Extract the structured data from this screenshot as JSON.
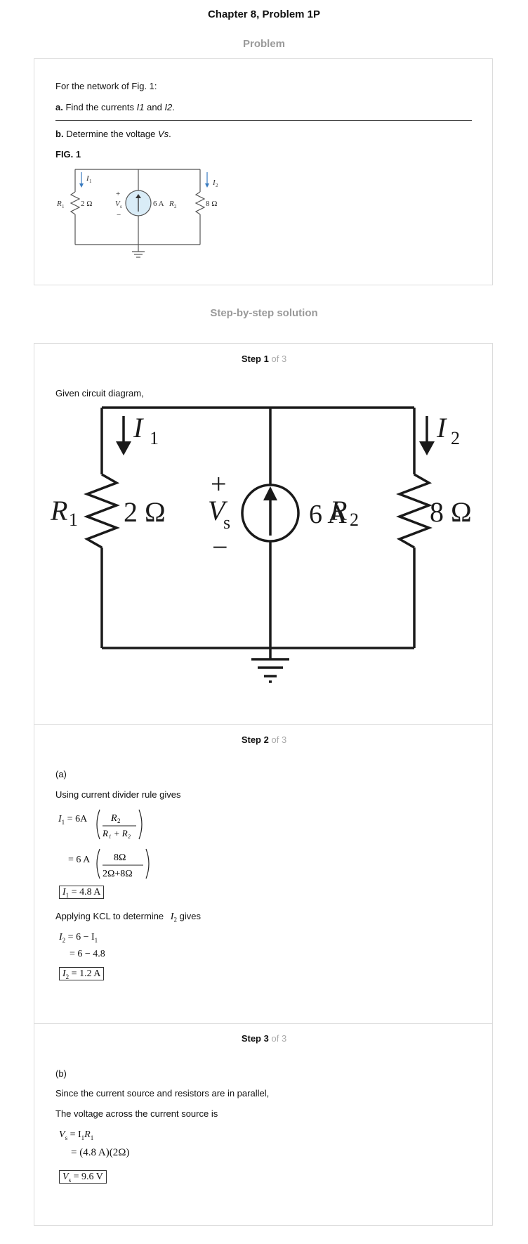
{
  "header": {
    "title": "Chapter 8, Problem 1P"
  },
  "problem": {
    "heading": "Problem",
    "intro": "For the network of Fig. 1:",
    "part_a_label": "a.",
    "part_a_pre": "Find the currents",
    "part_a_i1": "I1",
    "part_a_and": "and",
    "part_a_i2": "I2",
    "part_a_end": ".",
    "part_b_label": "b.",
    "part_b_pre": "Determine the voltage",
    "part_b_vs": "Vs",
    "part_b_end": ".",
    "fig_label": "FIG. 1"
  },
  "solution": {
    "heading": "Step-by-step solution",
    "of_total": "of 3",
    "steps": [
      {
        "label": "Step",
        "number": "1",
        "text": "Given circuit diagram,"
      },
      {
        "label": "Step",
        "number": "2",
        "part": "(a)",
        "rule": "Using current divider rule gives",
        "kcl": "Applying KCL to determine",
        "kcl_end": "gives"
      },
      {
        "label": "Step",
        "number": "3",
        "part": "(b)",
        "line1": "Since the current source and resistors are in parallel,",
        "line2": "The voltage across the current source is"
      }
    ]
  },
  "circuit": {
    "i1": "I",
    "i1_sub": "1",
    "i2": "I",
    "i2_sub": "2",
    "r1": "R",
    "r1_sub": "1",
    "r1_val": "2 Ω",
    "r2": "R",
    "r2_sub": "2",
    "r2_val": "8 Ω",
    "vs": "V",
    "vs_sub": "s",
    "plus": "+",
    "minus": "−",
    "source_val": "6 A"
  },
  "equations": {
    "i1_lhs": "= 6A",
    "r2": "R",
    "r1_plus_r2": "R₁ + R₂",
    "line2_lhs": "= 6 A",
    "num2": "8Ω",
    "den2": "2Ω+8Ω",
    "i1_result": "= 4.8 A",
    "i2_l1": "= 6 − I",
    "i2_l2": "= 6 − 4.8",
    "i2_result": "= 1.2 A",
    "vs_l1": "= I",
    "vs_l1b": "R",
    "vs_l2": "= (4.8 A)(2Ω)",
    "vs_result": "= 9.6 V"
  }
}
